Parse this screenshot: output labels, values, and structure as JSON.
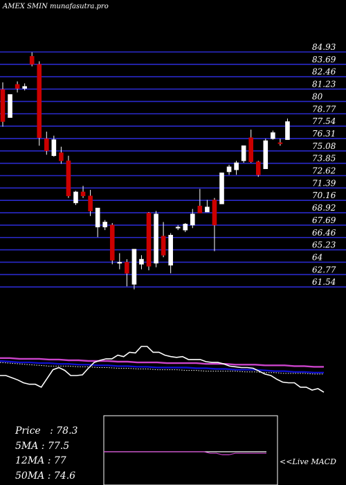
{
  "watermark": "AMEX  SMIN munafasutra.pro",
  "info": {
    "price_label": "Price",
    "price_value": "78.3",
    "ma5_label": "5MA",
    "ma5_value": "77.5",
    "ma12_label": "12MA",
    "ma12_value": "77",
    "ma50_label": "50MA",
    "ma50_value": "74.6"
  },
  "macd_label": "<<Live MACD",
  "colors": {
    "background": "#000000",
    "grid": "#2a2acc",
    "bull": "#ffffff",
    "bear": "#cc0000",
    "ma_fast": "#ffffff",
    "ma_mid": "#1010cc",
    "ma_slow": "#cc44cc"
  },
  "chart_data": [
    {
      "type": "candlestick",
      "title": "",
      "y_ticks": [
        84.93,
        83.69,
        82.46,
        81.23,
        80,
        78.77,
        77.54,
        76.31,
        75.08,
        73.85,
        72.62,
        71.39,
        70.16,
        68.92,
        67.69,
        66.46,
        65.23,
        64,
        62.77,
        61.54
      ],
      "ylim": [
        61.54,
        84.93
      ],
      "grid": true,
      "candles": [
        {
          "o": 81.2,
          "h": 81.9,
          "l": 77.5,
          "c": 78.0
        },
        {
          "o": 78.4,
          "h": 80.7,
          "l": 78.4,
          "c": 80.7
        },
        {
          "o": 81.7,
          "h": 82.0,
          "l": 80.9,
          "c": 81.3
        },
        {
          "o": 81.3,
          "h": 81.8,
          "l": 81.1,
          "c": 81.5
        },
        {
          "o": 84.5,
          "h": 84.9,
          "l": 83.5,
          "c": 83.7
        },
        {
          "o": 83.7,
          "h": 84.0,
          "l": 75.6,
          "c": 76.4
        },
        {
          "o": 76.3,
          "h": 77.0,
          "l": 74.7,
          "c": 75.1
        },
        {
          "o": 74.6,
          "h": 76.6,
          "l": 74.5,
          "c": 76.2
        },
        {
          "o": 74.9,
          "h": 75.5,
          "l": 73.8,
          "c": 74.1
        },
        {
          "o": 74.1,
          "h": 74.6,
          "l": 70.4,
          "c": 70.6
        },
        {
          "o": 69.9,
          "h": 71.1,
          "l": 69.7,
          "c": 71.0
        },
        {
          "o": 71.0,
          "h": 71.6,
          "l": 70.4,
          "c": 70.6
        },
        {
          "o": 70.6,
          "h": 71.2,
          "l": 68.6,
          "c": 69.1
        },
        {
          "o": 67.5,
          "h": 69.4,
          "l": 66.5,
          "c": 69.4
        },
        {
          "o": 67.5,
          "h": 68.2,
          "l": 67.2,
          "c": 68.0
        },
        {
          "o": 67.7,
          "h": 67.9,
          "l": 63.8,
          "c": 64.2
        },
        {
          "o": 63.9,
          "h": 64.9,
          "l": 63.3,
          "c": 64.0
        },
        {
          "o": 64.0,
          "h": 64.3,
          "l": 61.6,
          "c": 62.9
        },
        {
          "o": 61.8,
          "h": 65.3,
          "l": 61.3,
          "c": 65.3
        },
        {
          "o": 63.8,
          "h": 64.7,
          "l": 63.3,
          "c": 64.3
        },
        {
          "o": 68.9,
          "h": 69.0,
          "l": 63.2,
          "c": 63.6
        },
        {
          "o": 63.9,
          "h": 69.1,
          "l": 63.5,
          "c": 68.8
        },
        {
          "o": 66.6,
          "h": 68.0,
          "l": 64.5,
          "c": 64.7
        },
        {
          "o": 63.7,
          "h": 66.9,
          "l": 62.9,
          "c": 66.7
        },
        {
          "o": 67.4,
          "h": 67.7,
          "l": 67.2,
          "c": 67.5
        },
        {
          "o": 67.2,
          "h": 67.9,
          "l": 67.0,
          "c": 67.8
        },
        {
          "o": 67.7,
          "h": 69.3,
          "l": 67.4,
          "c": 68.8
        },
        {
          "o": 69.6,
          "h": 71.3,
          "l": 68.9,
          "c": 68.9
        },
        {
          "o": 69.0,
          "h": 70.2,
          "l": 69.0,
          "c": 69.5
        },
        {
          "o": 70.2,
          "h": 70.4,
          "l": 65.1,
          "c": 67.7
        },
        {
          "o": 69.8,
          "h": 72.9,
          "l": 69.8,
          "c": 72.9
        },
        {
          "o": 73.0,
          "h": 73.7,
          "l": 72.7,
          "c": 73.5
        },
        {
          "o": 73.2,
          "h": 74.1,
          "l": 72.7,
          "c": 73.9
        },
        {
          "o": 74.1,
          "h": 75.6,
          "l": 73.9,
          "c": 75.6
        },
        {
          "o": 76.4,
          "h": 77.2,
          "l": 73.9,
          "c": 74.0
        },
        {
          "o": 74.0,
          "h": 74.1,
          "l": 72.5,
          "c": 72.7
        },
        {
          "o": 73.3,
          "h": 76.3,
          "l": 73.3,
          "c": 76.1
        },
        {
          "o": 76.3,
          "h": 77.1,
          "l": 76.2,
          "c": 76.9
        },
        {
          "o": 75.9,
          "h": 76.3,
          "l": 75.6,
          "c": 75.8
        },
        {
          "o": 76.2,
          "h": 78.3,
          "l": 76.2,
          "c": 78.0
        }
      ]
    },
    {
      "type": "line",
      "title": "",
      "series": [
        {
          "values": [
            60,
            60,
            57,
            54,
            50,
            48,
            48,
            44,
            56,
            68,
            71,
            67,
            60,
            60,
            61,
            70,
            78,
            81,
            83,
            83,
            88,
            86,
            92,
            91,
            100,
            100,
            92,
            92,
            88,
            86,
            85,
            86,
            82,
            82,
            82,
            79,
            78,
            78,
            76,
            73,
            72,
            71,
            71,
            70,
            66,
            62,
            60,
            55,
            51,
            50,
            50,
            44,
            44,
            40,
            42,
            37
          ]
        },
        {
          "values": [
            78,
            77,
            76,
            75,
            74,
            73,
            73,
            73,
            72,
            72,
            71,
            71,
            70,
            70,
            69,
            69,
            68,
            68,
            68,
            67,
            67,
            66,
            66,
            66,
            66,
            65,
            65,
            64,
            64,
            63,
            63,
            63,
            62,
            62
          ]
        },
        {
          "values": [
            80,
            79,
            78,
            78,
            77,
            77,
            76,
            76,
            75,
            75,
            74,
            74,
            73,
            73,
            72,
            72,
            71,
            71,
            71,
            71,
            70,
            70,
            69,
            69,
            68,
            68,
            68,
            67,
            66,
            66,
            65,
            65,
            64,
            64
          ]
        },
        {
          "values": [
            84,
            84,
            83,
            83,
            83,
            82,
            82,
            81,
            81,
            80,
            80,
            80,
            79,
            79,
            78,
            78,
            78,
            77,
            77,
            77,
            77,
            76,
            76,
            76,
            75,
            75,
            75,
            74,
            74,
            74,
            73,
            73,
            72,
            72
          ]
        }
      ]
    },
    {
      "type": "line",
      "title": "",
      "series": [
        {
          "values": [
            30,
            30,
            30,
            30,
            30,
            30,
            30,
            30,
            30,
            30,
            30,
            30,
            30,
            30,
            30,
            30,
            30,
            29,
            29,
            28,
            28,
            29,
            29,
            29,
            29,
            29,
            29
          ]
        },
        {
          "values": [
            30,
            30,
            30,
            30,
            30,
            30,
            30,
            30,
            30,
            30,
            30,
            30,
            30,
            30,
            30,
            30,
            30,
            30,
            30,
            30,
            30,
            30,
            30,
            30,
            30,
            30,
            30
          ]
        }
      ]
    }
  ]
}
